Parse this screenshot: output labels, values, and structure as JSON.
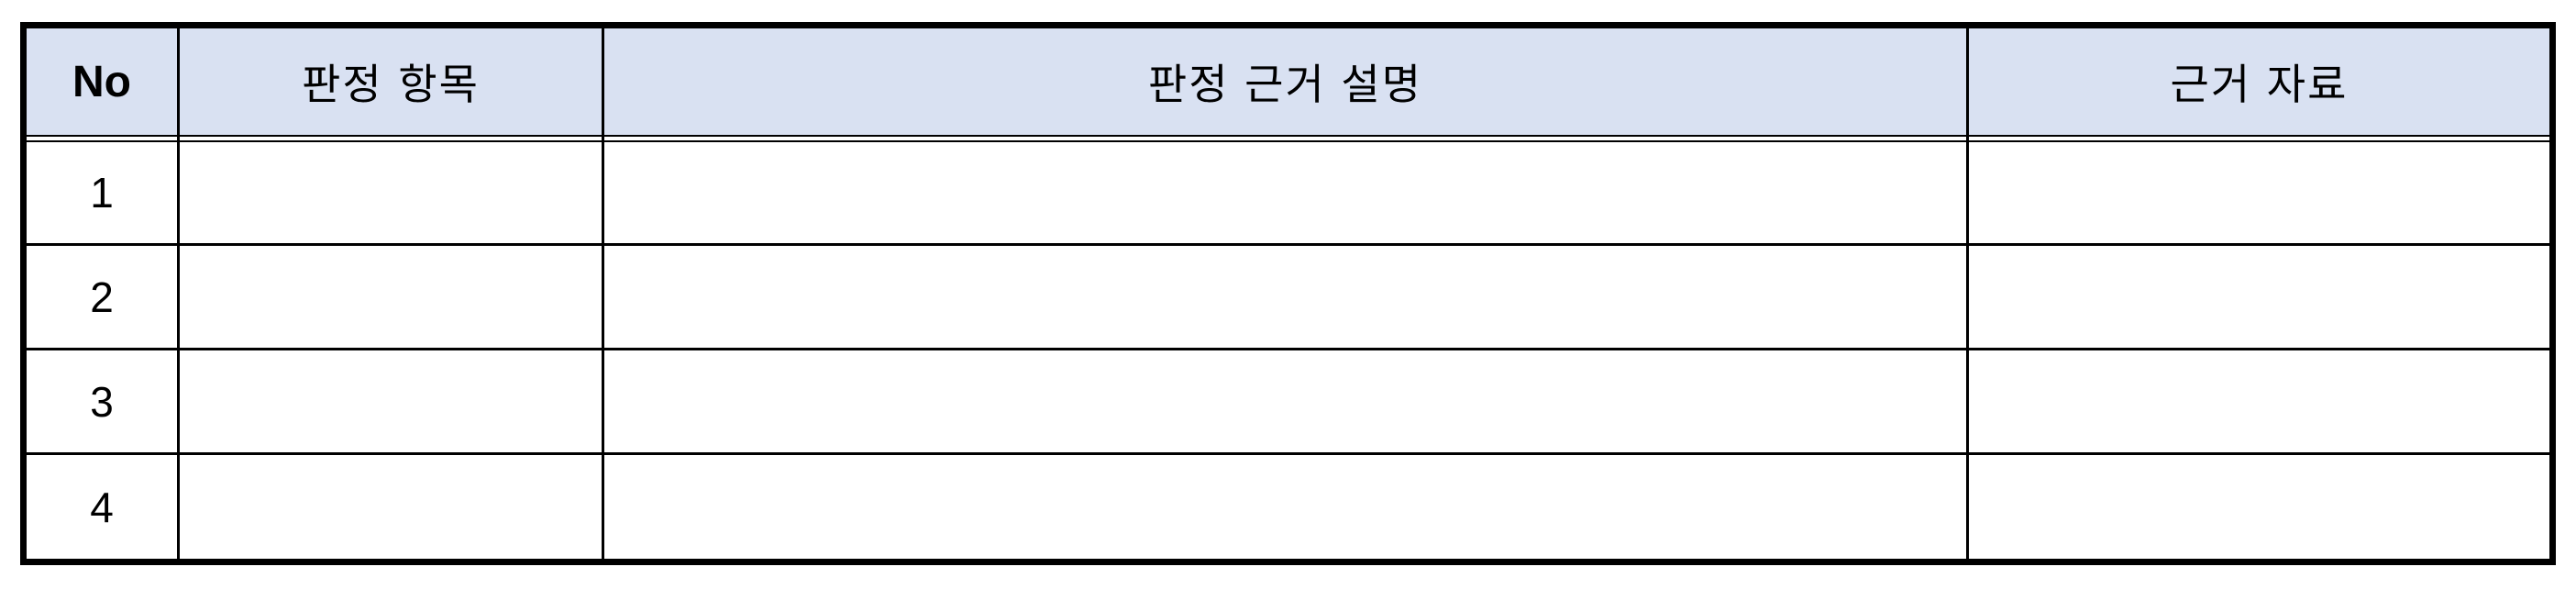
{
  "table": {
    "headers": {
      "no": "No",
      "item": "판정 항목",
      "description": "판정 근거 설명",
      "evidence": "근거 자료"
    },
    "rows": [
      {
        "no": "1",
        "item": "",
        "description": "",
        "evidence": ""
      },
      {
        "no": "2",
        "item": "",
        "description": "",
        "evidence": ""
      },
      {
        "no": "3",
        "item": "",
        "description": "",
        "evidence": ""
      },
      {
        "no": "4",
        "item": "",
        "description": "",
        "evidence": ""
      }
    ]
  },
  "colors": {
    "header_background": "#d9e1f2",
    "border": "#000000"
  }
}
